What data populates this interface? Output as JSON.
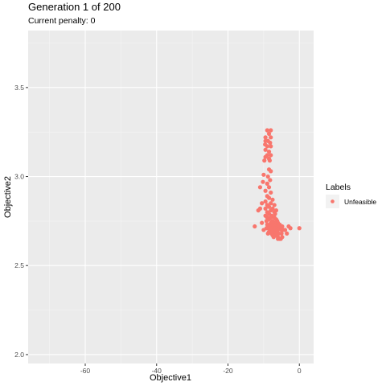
{
  "chart_data": {
    "type": "scatter",
    "title": "Generation 1 of 200",
    "subtitle": "Current penalty: 0",
    "xlabel": "Objective1",
    "ylabel": "Objective2",
    "xlim": [
      -76,
      4
    ],
    "ylim": [
      1.95,
      3.82
    ],
    "xticks": [
      -60,
      -40,
      -20,
      0
    ],
    "yticks": [
      2.0,
      2.5,
      3.0,
      3.5
    ],
    "xtick_labels": [
      "-60",
      "-40",
      "-20",
      "0"
    ],
    "ytick_labels": [
      "2.0",
      "2.5",
      "3.0",
      "3.5"
    ],
    "grid": true,
    "legend": {
      "title": "Labels",
      "entries": [
        "Unfeasible"
      ],
      "position": "right"
    },
    "colors": {
      "Unfeasible": "#f8766d",
      "panel": "#ebebeb",
      "grid": "#ffffff"
    },
    "series": [
      {
        "name": "Unfeasible",
        "points": [
          [
            -9.0,
            3.26
          ],
          [
            -8.0,
            3.26
          ],
          [
            -8.5,
            3.24
          ],
          [
            -9.5,
            3.22
          ],
          [
            -8.0,
            3.22
          ],
          [
            -9.5,
            3.2
          ],
          [
            -8.8,
            3.2
          ],
          [
            -8.2,
            3.19
          ],
          [
            -9.6,
            3.18
          ],
          [
            -9.0,
            3.17
          ],
          [
            -8.0,
            3.17
          ],
          [
            -9.5,
            3.15
          ],
          [
            -8.5,
            3.14
          ],
          [
            -9.0,
            3.12
          ],
          [
            -8.0,
            3.12
          ],
          [
            -9.5,
            3.11
          ],
          [
            -8.5,
            3.1
          ],
          [
            -9.8,
            3.09
          ],
          [
            -8.3,
            3.09
          ],
          [
            -8.5,
            3.04
          ],
          [
            -8.0,
            3.03
          ],
          [
            -10.0,
            3.01
          ],
          [
            -8.8,
            3.0
          ],
          [
            -8.2,
            2.98
          ],
          [
            -10.2,
            2.97
          ],
          [
            -9.0,
            2.96
          ],
          [
            -11.0,
            2.94
          ],
          [
            -8.5,
            2.94
          ],
          [
            -9.5,
            2.92
          ],
          [
            -8.0,
            2.91
          ],
          [
            -9.0,
            2.89
          ],
          [
            -8.5,
            2.88
          ],
          [
            -7.5,
            2.87
          ],
          [
            -9.5,
            2.86
          ],
          [
            -10.5,
            2.85
          ],
          [
            -8.0,
            2.85
          ],
          [
            -9.0,
            2.84
          ],
          [
            -7.0,
            2.84
          ],
          [
            -8.5,
            2.83
          ],
          [
            -11.0,
            2.82
          ],
          [
            -9.5,
            2.82
          ],
          [
            -7.5,
            2.82
          ],
          [
            -11.5,
            2.81
          ],
          [
            -8.0,
            2.81
          ],
          [
            -6.5,
            2.81
          ],
          [
            -9.0,
            2.8
          ],
          [
            -7.0,
            2.8
          ],
          [
            -8.5,
            2.79
          ],
          [
            -6.8,
            2.79
          ],
          [
            -9.5,
            2.78
          ],
          [
            -7.8,
            2.78
          ],
          [
            -9.0,
            2.77
          ],
          [
            -8.0,
            2.77
          ],
          [
            -7.0,
            2.77
          ],
          [
            -6.5,
            2.76
          ],
          [
            -8.5,
            2.76
          ],
          [
            -9.2,
            2.75
          ],
          [
            -7.5,
            2.75
          ],
          [
            -6.2,
            2.75
          ],
          [
            -8.0,
            2.74
          ],
          [
            -7.0,
            2.74
          ],
          [
            -6.0,
            2.74
          ],
          [
            -9.0,
            2.73
          ],
          [
            -8.2,
            2.73
          ],
          [
            -7.2,
            2.73
          ],
          [
            -6.5,
            2.73
          ],
          [
            -5.5,
            2.73
          ],
          [
            -8.8,
            2.72
          ],
          [
            -7.8,
            2.72
          ],
          [
            -6.8,
            2.72
          ],
          [
            -5.8,
            2.72
          ],
          [
            -4.8,
            2.72
          ],
          [
            -9.2,
            2.71
          ],
          [
            -8.5,
            2.71
          ],
          [
            -7.5,
            2.71
          ],
          [
            -6.5,
            2.71
          ],
          [
            -5.2,
            2.71
          ],
          [
            -8.0,
            2.7
          ],
          [
            -7.0,
            2.7
          ],
          [
            -6.0,
            2.7
          ],
          [
            -5.0,
            2.7
          ],
          [
            -4.5,
            2.7
          ],
          [
            -8.5,
            2.69
          ],
          [
            -7.5,
            2.69
          ],
          [
            -6.2,
            2.69
          ],
          [
            -8.8,
            2.68
          ],
          [
            -7.8,
            2.68
          ],
          [
            -6.8,
            2.68
          ],
          [
            -5.8,
            2.68
          ],
          [
            -5.0,
            2.68
          ],
          [
            -7.5,
            2.67
          ],
          [
            -6.5,
            2.67
          ],
          [
            -7.2,
            2.66
          ],
          [
            -6.0,
            2.66
          ],
          [
            -5.5,
            2.65
          ],
          [
            -12.5,
            2.72
          ],
          [
            -10.5,
            2.74
          ],
          [
            -10.0,
            2.7
          ],
          [
            -3.0,
            2.72
          ],
          [
            -4.0,
            2.7
          ],
          [
            -2.5,
            2.71
          ],
          [
            0.0,
            2.71
          ],
          [
            -3.5,
            2.68
          ],
          [
            -4.8,
            2.66
          ],
          [
            -6.0,
            2.65
          ],
          [
            -5.2,
            2.65
          ]
        ]
      }
    ]
  }
}
